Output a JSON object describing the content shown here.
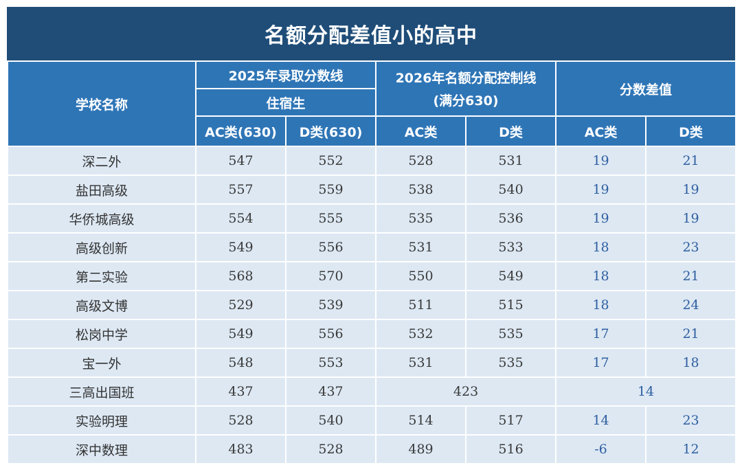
{
  "title": "名额分配差值小的高中",
  "header": {
    "school_name": "学校名称",
    "group_2025": "2025年录取分数线",
    "group_2025_sub": "住宿生",
    "group_2026_line1": "2026年名额分配控制线",
    "group_2026_line2": "(满分630)",
    "group_diff": "分数差值",
    "col_2025_ac": "AC类(630)",
    "col_2025_d": "D类(630)",
    "col_2026_ac": "AC类",
    "col_2026_d": "D类",
    "col_diff_ac": "AC类",
    "col_diff_d": "D类"
  },
  "rows": [
    {
      "school": "深二外",
      "s2025_ac": "547",
      "s2025_d": "552",
      "s2026_ac": "528",
      "s2026_d": "531",
      "diff_ac": "19",
      "diff_d": "21"
    },
    {
      "school": "盐田高级",
      "s2025_ac": "557",
      "s2025_d": "559",
      "s2026_ac": "538",
      "s2026_d": "540",
      "diff_ac": "19",
      "diff_d": "19"
    },
    {
      "school": "华侨城高级",
      "s2025_ac": "554",
      "s2025_d": "555",
      "s2026_ac": "535",
      "s2026_d": "536",
      "diff_ac": "19",
      "diff_d": "19"
    },
    {
      "school": "高级创新",
      "s2025_ac": "549",
      "s2025_d": "556",
      "s2026_ac": "531",
      "s2026_d": "533",
      "diff_ac": "18",
      "diff_d": "23"
    },
    {
      "school": "第二实验",
      "s2025_ac": "568",
      "s2025_d": "570",
      "s2026_ac": "550",
      "s2026_d": "549",
      "diff_ac": "18",
      "diff_d": "21"
    },
    {
      "school": "高级文博",
      "s2025_ac": "529",
      "s2025_d": "539",
      "s2026_ac": "511",
      "s2026_d": "515",
      "diff_ac": "18",
      "diff_d": "24"
    },
    {
      "school": "松岗中学",
      "s2025_ac": "549",
      "s2025_d": "556",
      "s2026_ac": "532",
      "s2026_d": "535",
      "diff_ac": "17",
      "diff_d": "21"
    },
    {
      "school": "宝一外",
      "s2025_ac": "548",
      "s2025_d": "553",
      "s2026_ac": "531",
      "s2026_d": "535",
      "diff_ac": "17",
      "diff_d": "18"
    },
    {
      "school": "三高出国班",
      "s2025_ac": "437",
      "s2025_d": "437",
      "s2026_merged": "423",
      "diff_merged": "14"
    },
    {
      "school": "实验明理",
      "s2025_ac": "528",
      "s2025_d": "540",
      "s2026_ac": "514",
      "s2026_d": "517",
      "diff_ac": "14",
      "diff_d": "23"
    },
    {
      "school": "深中数理",
      "s2025_ac": "483",
      "s2025_d": "528",
      "s2026_ac": "489",
      "s2026_d": "516",
      "diff_ac": "-6",
      "diff_d": "12"
    }
  ],
  "colors": {
    "title_bg": "#1f4d78",
    "header_bg": "#2e75b6",
    "row_bg": "#dde8f3",
    "diff_text": "#2e5fa0"
  }
}
